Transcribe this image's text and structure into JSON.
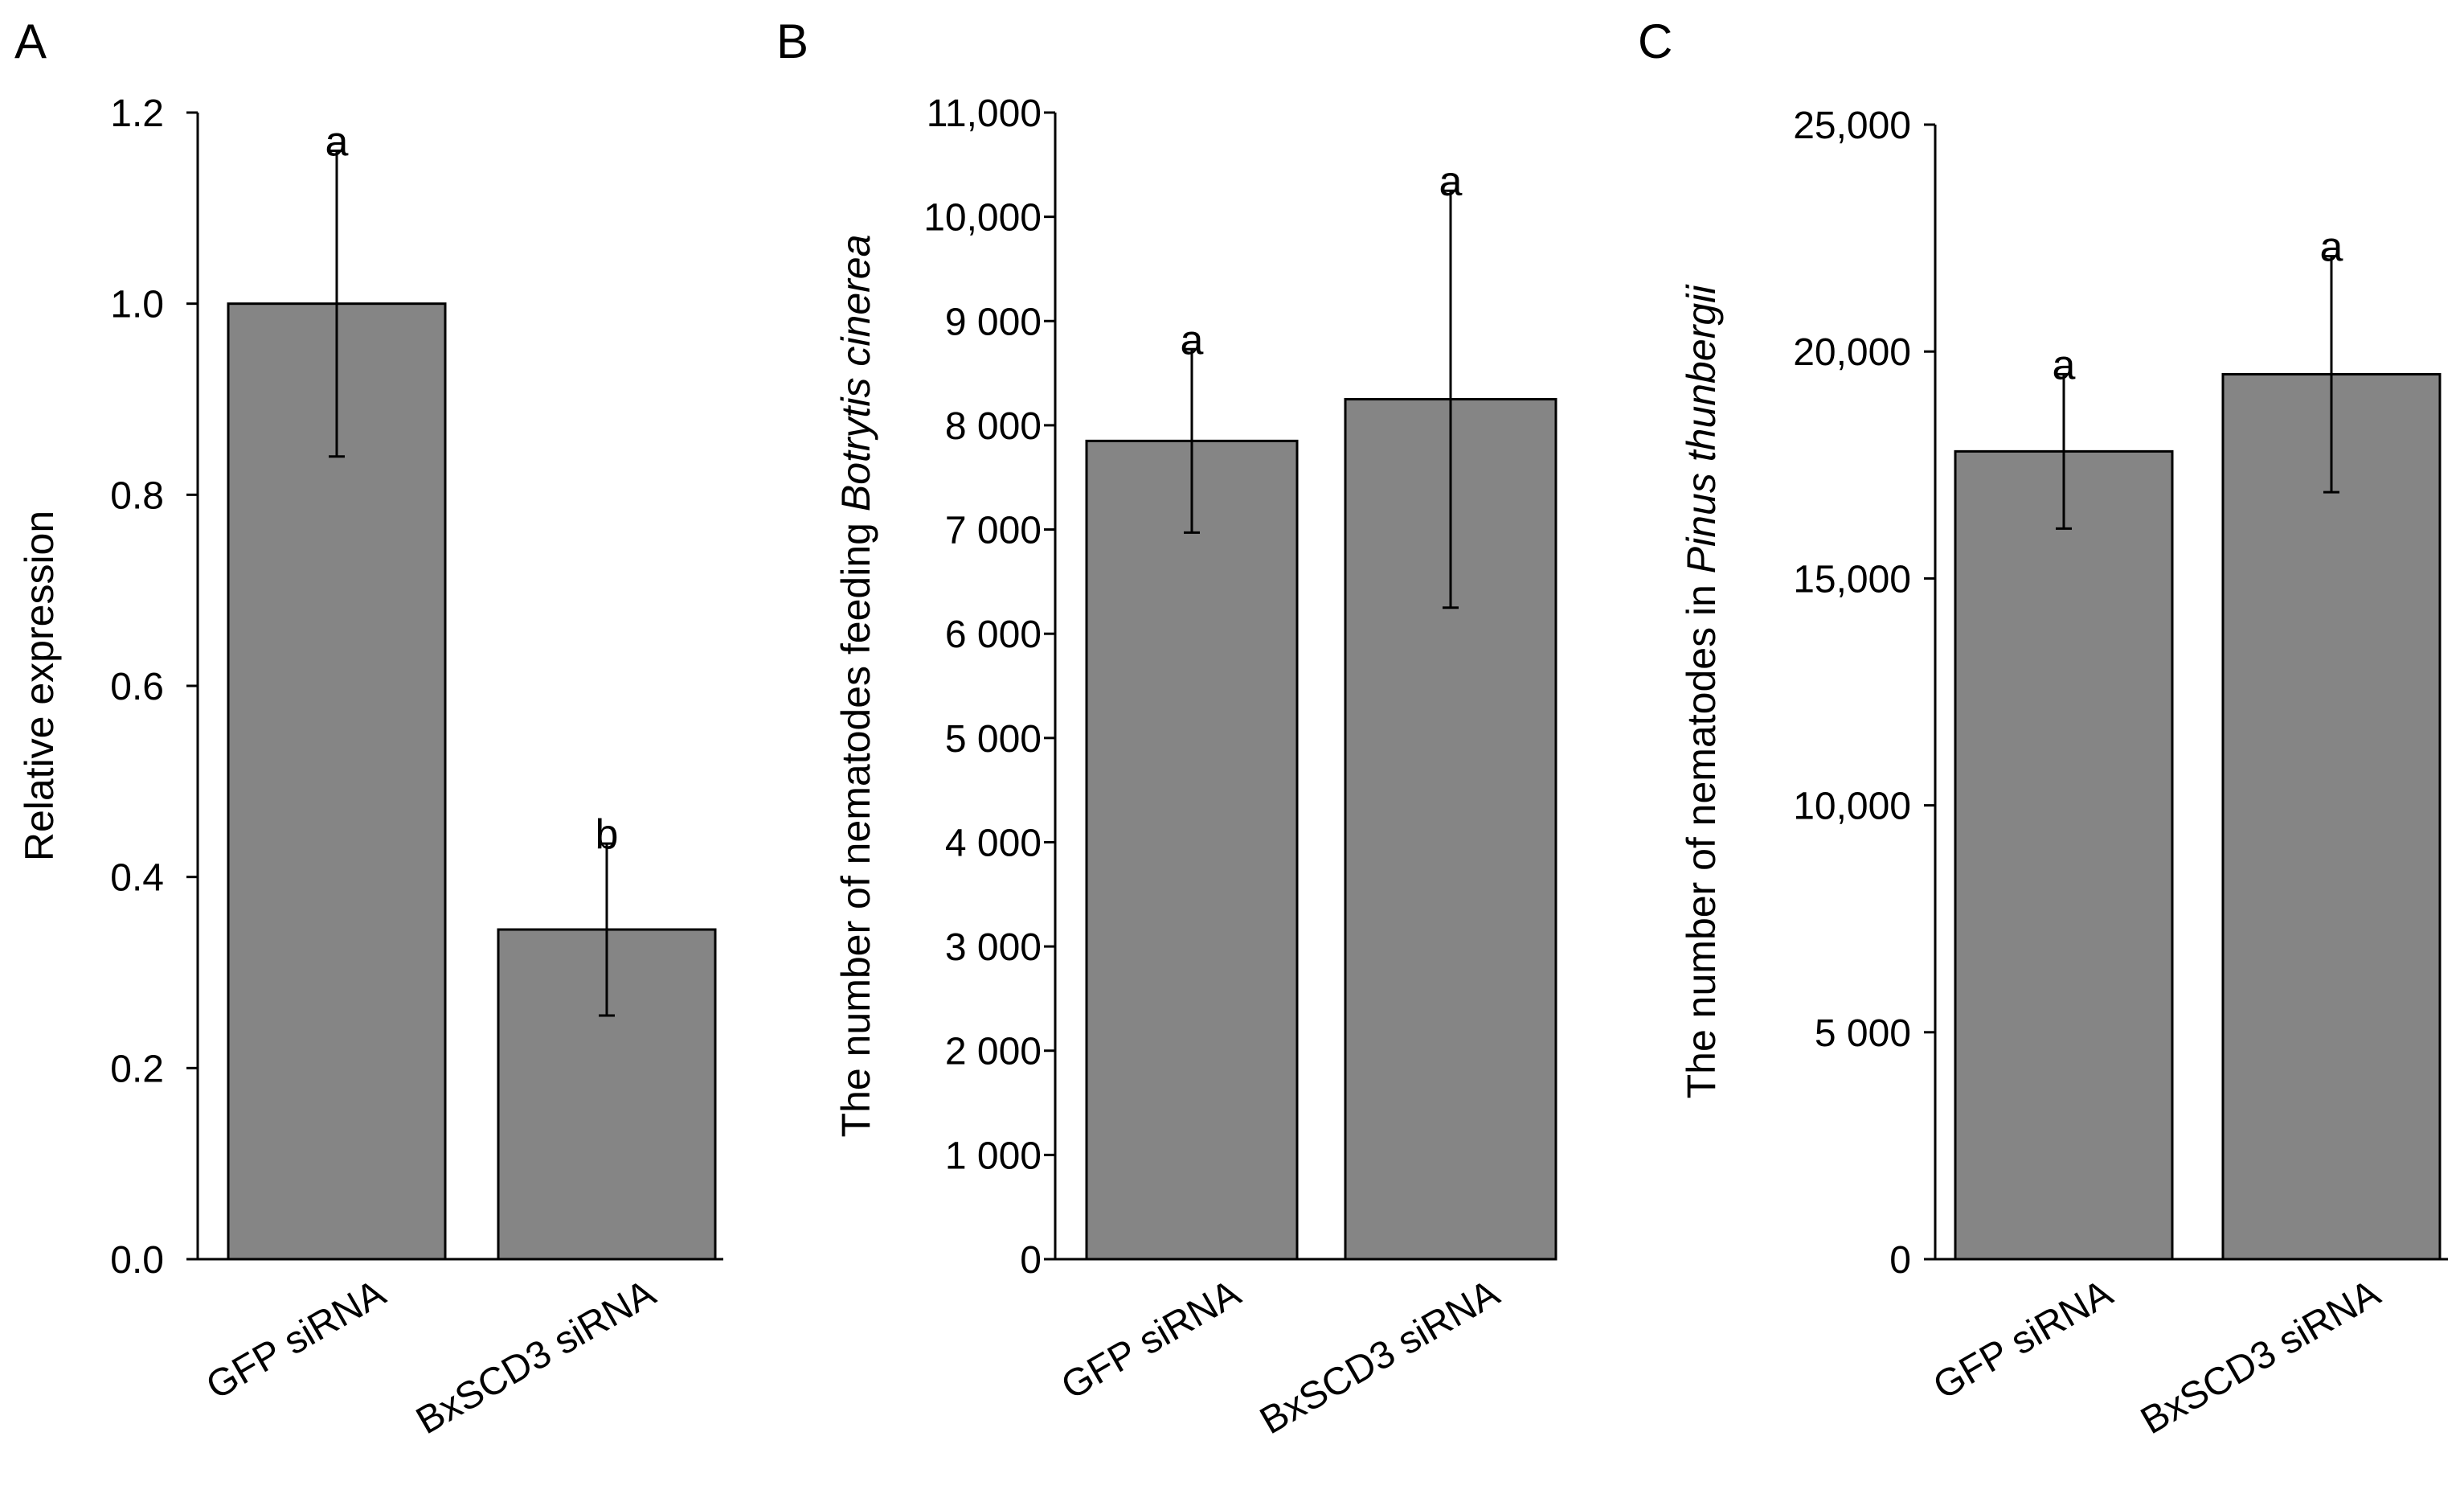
{
  "colors": {
    "bar_fill": "#858585",
    "bar_stroke": "#000000",
    "axis": "#000000"
  },
  "chart_data": [
    {
      "type": "bar",
      "panel": "A",
      "categories": [
        "GFP siRNA",
        "BxSCD3 siRNA"
      ],
      "values": [
        1.0,
        0.345
      ],
      "error": [
        0.16,
        0.09
      ],
      "significance": [
        "a",
        "b"
      ],
      "ylabel": "Relative expression",
      "ylabel_italic": "",
      "ylim": [
        0,
        1.2
      ],
      "yticks": [
        0,
        0.2,
        0.4,
        0.6,
        0.8,
        1.0,
        1.2
      ],
      "ytick_labels": [
        "0.0",
        "0.2",
        "0.4",
        "0.6",
        "0.8",
        "1.0",
        "1.2"
      ]
    },
    {
      "type": "bar",
      "panel": "B",
      "categories": [
        "GFP siRNA",
        "BxSCD3 siRNA"
      ],
      "values": [
        7850,
        8250
      ],
      "error": [
        880,
        2000
      ],
      "significance": [
        "a",
        "a"
      ],
      "ylabel": "The number of nematodes feeding ",
      "ylabel_italic": "Botrytis cinerea",
      "ylim": [
        0,
        11000
      ],
      "yticks": [
        0,
        1000,
        2000,
        3000,
        4000,
        5000,
        6000,
        7000,
        8000,
        9000,
        10000,
        11000
      ],
      "ytick_labels": [
        "0",
        "1 000",
        "2 000",
        "3 000",
        "4 000",
        "5 000",
        "6 000",
        "7 000",
        "8 000",
        "9 000",
        "10,000",
        "11,000"
      ]
    },
    {
      "type": "bar",
      "panel": "C",
      "categories": [
        "GFP siRNA",
        "BxSCD3 siRNA"
      ],
      "values": [
        17800,
        19500
      ],
      "error": [
        1700,
        2600
      ],
      "significance": [
        "a",
        "a"
      ],
      "ylabel": "The number of nematodes in ",
      "ylabel_italic": "Pinus thunbergii",
      "ylim": [
        0,
        25000
      ],
      "yticks": [
        0,
        5000,
        10000,
        15000,
        20000,
        25000
      ],
      "ytick_labels": [
        "0",
        "5 000",
        "10,000",
        "15,000",
        "20,000",
        "25,000"
      ]
    }
  ]
}
